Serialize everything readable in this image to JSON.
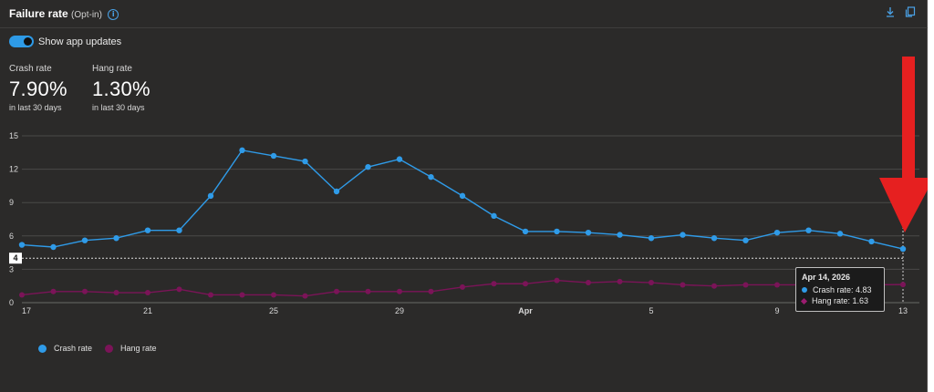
{
  "header": {
    "title": "Failure rate",
    "subtitle": "(Opt-in)",
    "info_icon": "info-icon",
    "download_icon": "download-icon",
    "copy_icon": "copy-icon"
  },
  "toggle": {
    "label": "Show app updates",
    "on": true
  },
  "metrics": [
    {
      "label": "Crash rate",
      "value": "7.90%",
      "note": "in last 30 days"
    },
    {
      "label": "Hang rate",
      "value": "1.30%",
      "note": "in last 30 days"
    }
  ],
  "tooltip": {
    "date": "Apr 14, 2026",
    "crash": "Crash rate: 4.83",
    "hang": "Hang rate: 1.63"
  },
  "colors": {
    "crash": "#2f9be8",
    "hang": "#7b1458",
    "annotation_arrow": "#e62020",
    "toggle": "#2e9ae6"
  },
  "chart_data": {
    "type": "line",
    "x": [
      "Mar 17",
      "Mar 18",
      "Mar 19",
      "Mar 20",
      "Mar 21",
      "Mar 22",
      "Mar 23",
      "Mar 24",
      "Mar 25",
      "Mar 26",
      "Mar 27",
      "Mar 28",
      "Mar 29",
      "Mar 30",
      "Mar 31",
      "Apr 1",
      "Apr 2",
      "Apr 3",
      "Apr 4",
      "Apr 5",
      "Apr 6",
      "Apr 7",
      "Apr 8",
      "Apr 9",
      "Apr 10",
      "Apr 11",
      "Apr 12",
      "Apr 13",
      "Apr 14"
    ],
    "x_tick_labels": [
      "17",
      "21",
      "25",
      "29",
      "Apr",
      "5",
      "9",
      "13"
    ],
    "y_ticks": [
      "0",
      "3",
      "6",
      "9",
      "12",
      "15"
    ],
    "ylim": [
      0,
      15
    ],
    "reference_line": {
      "value": 4,
      "label": "4"
    },
    "series": [
      {
        "name": "Crash rate",
        "values": [
          5.2,
          5.0,
          5.6,
          5.8,
          6.5,
          6.5,
          9.6,
          13.7,
          13.2,
          12.7,
          10.0,
          12.2,
          12.9,
          11.3,
          9.6,
          7.8,
          6.4,
          6.4,
          6.3,
          6.1,
          5.8,
          6.1,
          5.8,
          5.6,
          6.3,
          6.5,
          6.2,
          5.5,
          4.83
        ]
      },
      {
        "name": "Hang rate",
        "values": [
          0.7,
          1.0,
          1.0,
          0.9,
          0.9,
          1.2,
          0.7,
          0.7,
          0.7,
          0.6,
          1.0,
          1.0,
          1.0,
          1.0,
          1.4,
          1.7,
          1.7,
          2.0,
          1.8,
          1.9,
          1.8,
          1.6,
          1.5,
          1.6,
          1.6,
          1.6,
          1.7,
          1.6,
          1.63
        ]
      }
    ],
    "grid": true,
    "legend": "bottom-left"
  }
}
